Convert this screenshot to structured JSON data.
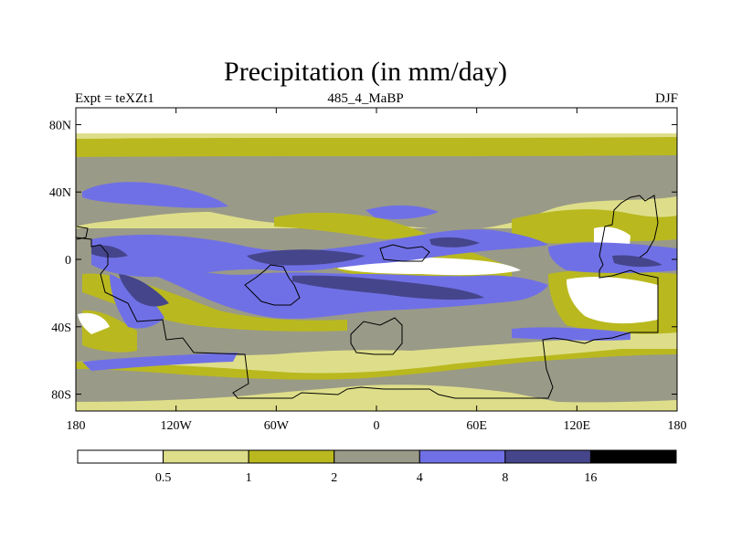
{
  "title": "Precipitation (in mm/day)",
  "subtitle_left": "Expt = teXZt1",
  "subtitle_center": "485_4_MaBP",
  "subtitle_right": "DJF",
  "lat_labels": [
    "80N",
    "40N",
    "0",
    "40S",
    "80S"
  ],
  "lon_labels": [
    "180",
    "120W",
    "60W",
    "0",
    "60E",
    "120E",
    "180"
  ],
  "colorbar": {
    "labels": [
      "0.5",
      "1",
      "2",
      "4",
      "8",
      "16"
    ],
    "colors": [
      "#ffffff",
      "#dede8a",
      "#b9b91f",
      "#9a9a88",
      "#7070e6",
      "#45458c",
      "#000000"
    ]
  },
  "colors": {
    "lt_yellow": "#dede8a",
    "olive": "#b9b91f",
    "grey": "#9a9a88",
    "blue": "#7070e6",
    "navy": "#45458c"
  }
}
